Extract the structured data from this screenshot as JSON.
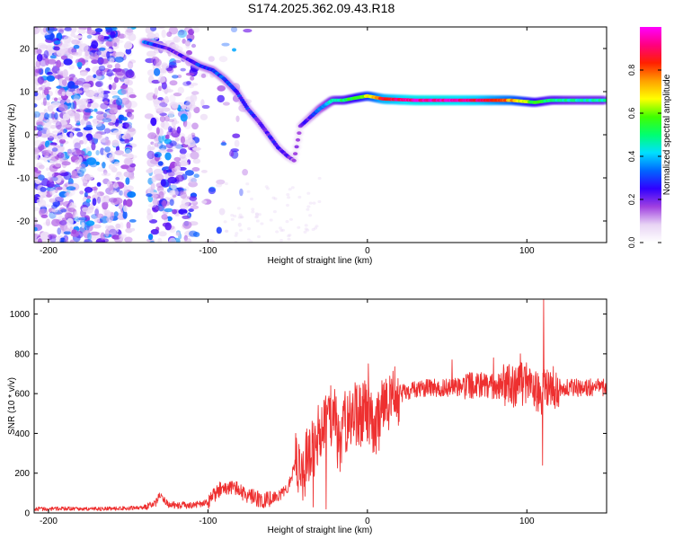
{
  "title": "S174.2025.362.09.43.R18",
  "chart_data": [
    {
      "type": "heatmap",
      "xlabel": "Height of straight line (km)",
      "ylabel": "Frequency (Hz)",
      "xlim": [
        -209,
        150
      ],
      "ylim": [
        -25,
        25
      ],
      "xticks": [
        -200,
        -100,
        0,
        100
      ],
      "yticks": [
        -20,
        -10,
        0,
        10,
        20
      ],
      "colorbar": {
        "label": "Normalized spectral amplitude",
        "range": [
          0,
          1
        ],
        "ticks": [
          "0.0",
          "0.2",
          "0.4",
          "0.6",
          "0.8"
        ],
        "tick_values": [
          0,
          0.2,
          0.4,
          0.6,
          0.8
        ],
        "colormap": [
          "#ffffff",
          "#e8d4f4",
          "#a040e0",
          "#3000ff",
          "#0066ff",
          "#00e0ff",
          "#00ff70",
          "#40ff00",
          "#ffff00",
          "#ffa000",
          "#ff2000",
          "#ff0080",
          "#ff00ff"
        ]
      },
      "ridge": [
        {
          "x": -140,
          "y": 21.5,
          "a": 0.35
        },
        {
          "x": -125,
          "y": 20,
          "a": 0.2
        },
        {
          "x": -115,
          "y": 18,
          "a": 0.22
        },
        {
          "x": -105,
          "y": 16,
          "a": 0.28
        },
        {
          "x": -97,
          "y": 15,
          "a": 0.3
        },
        {
          "x": -90,
          "y": 13,
          "a": 0.3
        },
        {
          "x": -82,
          "y": 10,
          "a": 0.28
        },
        {
          "x": -75,
          "y": 6,
          "a": 0.26
        },
        {
          "x": -68,
          "y": 3,
          "a": 0.24
        },
        {
          "x": -62,
          "y": 0,
          "a": 0.24
        },
        {
          "x": -56,
          "y": -3,
          "a": 0.22
        },
        {
          "x": -50,
          "y": -5,
          "a": 0.2
        },
        {
          "x": -46,
          "y": -6,
          "a": 0.15
        },
        {
          "x": -42,
          "y": 2,
          "a": 0.2
        },
        {
          "x": -36,
          "y": 4,
          "a": 0.25
        },
        {
          "x": -30,
          "y": 6,
          "a": 0.35
        },
        {
          "x": -22,
          "y": 8,
          "a": 0.45
        },
        {
          "x": -15,
          "y": 8,
          "a": 0.5
        },
        {
          "x": -8,
          "y": 8.5,
          "a": 0.55
        },
        {
          "x": 0,
          "y": 9,
          "a": 0.65
        },
        {
          "x": 10,
          "y": 8.3,
          "a": 0.85
        },
        {
          "x": 30,
          "y": 8,
          "a": 0.95
        },
        {
          "x": 50,
          "y": 8,
          "a": 0.95
        },
        {
          "x": 70,
          "y": 8,
          "a": 0.9
        },
        {
          "x": 90,
          "y": 8,
          "a": 0.75
        },
        {
          "x": 105,
          "y": 7.5,
          "a": 0.55
        },
        {
          "x": 115,
          "y": 8,
          "a": 0.5
        },
        {
          "x": 130,
          "y": 8,
          "a": 0.45
        },
        {
          "x": 150,
          "y": 8,
          "a": 0.45
        }
      ]
    },
    {
      "type": "line",
      "xlabel": "Height of straight line (km)",
      "ylabel": "SNR (10 * v/v)",
      "xlim": [
        -209,
        150
      ],
      "ylim": [
        0,
        1075
      ],
      "xticks": [
        -200,
        -100,
        0,
        100
      ],
      "yticks": [
        0,
        200,
        400,
        600,
        800,
        1000
      ],
      "color": "#ee3030",
      "series": [
        {
          "x": [
            -209,
            -190,
            -170,
            -150,
            -140,
            -133,
            -130,
            -125,
            -110,
            -100,
            -92,
            -85,
            -75,
            -65,
            -55,
            -50,
            -45,
            -40,
            -36,
            -33,
            -30,
            -27,
            -24,
            -21,
            -18,
            -15,
            -12,
            -8,
            -4,
            0,
            5,
            10,
            15,
            20,
            30,
            40,
            50,
            60,
            70,
            80,
            90,
            100,
            105,
            110,
            112,
            115,
            120,
            130,
            140,
            150
          ],
          "y": [
            20,
            22,
            20,
            24,
            28,
            45,
            95,
            40,
            38,
            55,
            120,
            130,
            90,
            60,
            90,
            120,
            250,
            200,
            330,
            340,
            400,
            420,
            480,
            520,
            330,
            460,
            450,
            500,
            490,
            520,
            420,
            530,
            560,
            600,
            620,
            630,
            630,
            635,
            640,
            645,
            640,
            650,
            620,
            600,
            640,
            625,
            630,
            630,
            630,
            630
          ]
        }
      ],
      "spikes": [
        {
          "x": 110.5,
          "y": 1075
        },
        {
          "x": 109.8,
          "y": 240
        },
        {
          "x": 0.5,
          "y": 750
        },
        {
          "x": -23,
          "y": 640
        },
        {
          "x": -30,
          "y": 470
        },
        {
          "x": -45,
          "y": 400
        },
        {
          "x": -26,
          "y": 20
        },
        {
          "x": -34,
          "y": 30
        },
        {
          "x": 96,
          "y": 800
        },
        {
          "x": 79,
          "y": 780
        },
        {
          "x": 53,
          "y": 770
        }
      ]
    }
  ]
}
